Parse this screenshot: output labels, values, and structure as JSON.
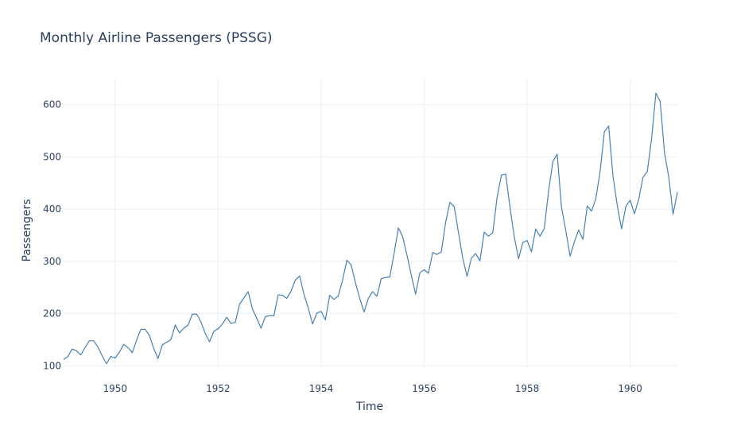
{
  "chart_data": {
    "type": "line",
    "title": "Monthly Airline Passengers (PSSG)",
    "xlabel": "Time",
    "ylabel": "Passengers",
    "line_color": "#4682b4",
    "grid": true,
    "x_start": "1949-01",
    "x_end": "1960-12",
    "xlim": [
      1949.0,
      1960.917
    ],
    "ylim": [
      96,
      648
    ],
    "x_ticks": [
      1950,
      1952,
      1954,
      1956,
      1958,
      1960
    ],
    "y_ticks": [
      100,
      200,
      300,
      400,
      500,
      600
    ],
    "values": [
      112,
      118,
      132,
      129,
      121,
      135,
      148,
      148,
      136,
      119,
      104,
      118,
      115,
      126,
      141,
      135,
      125,
      149,
      170,
      170,
      158,
      133,
      114,
      140,
      145,
      150,
      178,
      163,
      172,
      178,
      199,
      199,
      184,
      162,
      146,
      166,
      171,
      180,
      193,
      181,
      183,
      218,
      230,
      242,
      209,
      191,
      172,
      194,
      196,
      196,
      236,
      235,
      229,
      243,
      264,
      272,
      237,
      211,
      180,
      201,
      204,
      188,
      235,
      227,
      234,
      264,
      302,
      293,
      259,
      229,
      203,
      229,
      242,
      233,
      267,
      269,
      270,
      315,
      364,
      347,
      312,
      274,
      237,
      278,
      284,
      277,
      317,
      313,
      318,
      374,
      413,
      405,
      355,
      306,
      271,
      306,
      315,
      301,
      356,
      348,
      355,
      422,
      465,
      467,
      404,
      347,
      305,
      336,
      340,
      318,
      362,
      348,
      363,
      435,
      491,
      505,
      404,
      359,
      310,
      337,
      360,
      342,
      406,
      396,
      420,
      472,
      548,
      559,
      463,
      407,
      362,
      405,
      417,
      391,
      419,
      461,
      472,
      535,
      622,
      606,
      508,
      461,
      390,
      432
    ]
  }
}
